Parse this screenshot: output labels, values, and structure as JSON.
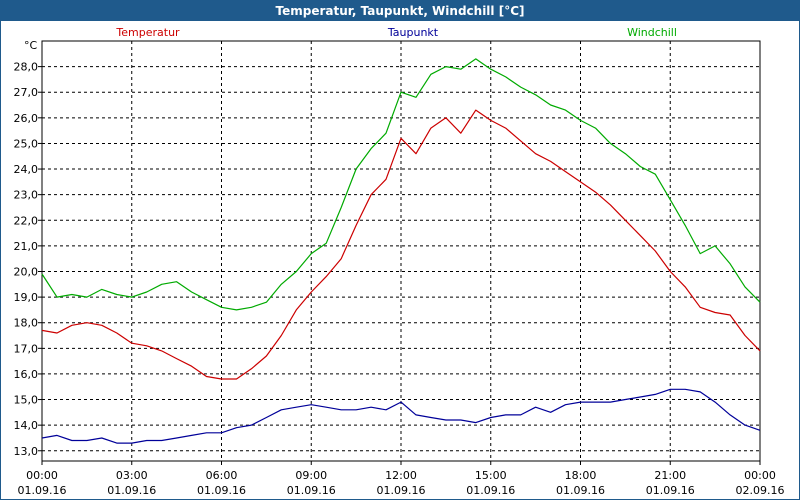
{
  "window": {
    "title": "Temperatur, Taupunkt, Windchill [°C]"
  },
  "chart_data": {
    "type": "line",
    "ylabel": "°C",
    "ylim": [
      12.6,
      29.0
    ],
    "grid": true,
    "legend_position": "top",
    "x_tick_times": [
      "00:00",
      "03:00",
      "06:00",
      "09:00",
      "12:00",
      "15:00",
      "18:00",
      "21:00",
      "00:00"
    ],
    "x_tick_dates": [
      "01.09.16",
      "01.09.16",
      "01.09.16",
      "01.09.16",
      "01.09.16",
      "01.09.16",
      "01.09.16",
      "01.09.16",
      "02.09.16"
    ],
    "y_ticks": [
      "13,0",
      "14,0",
      "15,0",
      "16,0",
      "17,0",
      "18,0",
      "19,0",
      "20,0",
      "21,0",
      "22,0",
      "23,0",
      "24,0",
      "25,0",
      "26,0",
      "27,0",
      "28,0"
    ],
    "x_hours": [
      0,
      0.5,
      1,
      1.5,
      2,
      2.5,
      3,
      3.5,
      4,
      4.5,
      5,
      5.5,
      6,
      6.5,
      7,
      7.5,
      8,
      8.5,
      9,
      9.5,
      10,
      10.5,
      11,
      11.5,
      12,
      12.5,
      13,
      13.5,
      14,
      14.5,
      15,
      15.5,
      16,
      16.5,
      17,
      17.5,
      18,
      18.5,
      19,
      19.5,
      20,
      20.5,
      21,
      21.5,
      22,
      22.5,
      23,
      23.5,
      24
    ],
    "series": [
      {
        "name": "Temperatur",
        "color": "#cc0000",
        "values": [
          17.7,
          17.6,
          17.9,
          18.0,
          17.9,
          17.6,
          17.2,
          17.1,
          16.9,
          16.6,
          16.3,
          15.9,
          15.8,
          15.8,
          16.2,
          16.7,
          17.5,
          18.5,
          19.2,
          19.8,
          20.5,
          21.8,
          23.0,
          23.6,
          25.2,
          24.6,
          25.6,
          26.0,
          25.4,
          26.3,
          25.9,
          25.6,
          25.1,
          24.6,
          24.3,
          23.9,
          23.5,
          23.1,
          22.6,
          22.0,
          21.4,
          20.8,
          20.0,
          19.4,
          18.6,
          18.4,
          18.3,
          17.5,
          16.9
        ]
      },
      {
        "name": "Taupunkt",
        "color": "#000099",
        "values": [
          13.5,
          13.6,
          13.4,
          13.4,
          13.5,
          13.3,
          13.3,
          13.4,
          13.4,
          13.5,
          13.6,
          13.7,
          13.7,
          13.9,
          14.0,
          14.3,
          14.6,
          14.7,
          14.8,
          14.7,
          14.6,
          14.6,
          14.7,
          14.6,
          14.9,
          14.4,
          14.3,
          14.2,
          14.2,
          14.1,
          14.3,
          14.4,
          14.4,
          14.7,
          14.5,
          14.8,
          14.9,
          14.9,
          14.9,
          15.0,
          15.1,
          15.2,
          15.4,
          15.4,
          15.3,
          14.9,
          14.4,
          14.0,
          13.8
        ]
      },
      {
        "name": "Windchill",
        "color": "#00aa00",
        "values": [
          19.9,
          19.0,
          19.1,
          19.0,
          19.3,
          19.1,
          19.0,
          19.2,
          19.5,
          19.6,
          19.2,
          18.9,
          18.6,
          18.5,
          18.6,
          18.8,
          19.5,
          20.0,
          20.7,
          21.1,
          22.5,
          24.0,
          24.8,
          25.4,
          27.0,
          26.8,
          27.7,
          28.0,
          27.9,
          28.3,
          27.9,
          27.6,
          27.2,
          26.9,
          26.5,
          26.3,
          25.9,
          25.6,
          25.0,
          24.6,
          24.1,
          23.8,
          22.8,
          21.8,
          20.7,
          21.0,
          20.3,
          19.4,
          18.8
        ]
      }
    ]
  }
}
